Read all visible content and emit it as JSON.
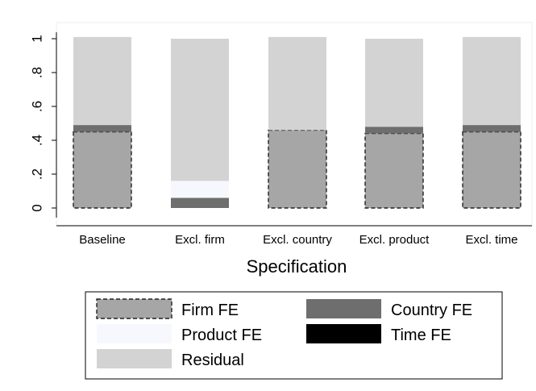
{
  "chart_data": {
    "type": "bar",
    "stacked": true,
    "title": "",
    "xlabel": "Specification",
    "ylabel": "",
    "ylim": [
      0,
      1
    ],
    "yticks": [
      0,
      0.2,
      0.4,
      0.6,
      0.8,
      1
    ],
    "ytick_labels": [
      "0",
      ".2",
      ".4",
      ".6",
      ".8",
      "1"
    ],
    "grid": false,
    "legend_position": "bottom",
    "categories": [
      "Baseline",
      "Excl. firm",
      "Excl. country",
      "Excl. product",
      "Excl. time"
    ],
    "series": [
      {
        "name": "Firm FE",
        "values": [
          0.45,
          0.0,
          0.46,
          0.44,
          0.45
        ],
        "color": "#a6a6a6",
        "dashed_border": true
      },
      {
        "name": "Country FE",
        "values": [
          0.04,
          0.06,
          0.0,
          0.04,
          0.04
        ],
        "color": "#6e6e6e"
      },
      {
        "name": "Product FE",
        "values": [
          0.0,
          0.1,
          0.0,
          0.0,
          0.0
        ],
        "color": "#f7f8fd"
      },
      {
        "name": "Time FE",
        "values": [
          0.0,
          0.0,
          0.0,
          0.0,
          0.0
        ],
        "color": "#000000"
      },
      {
        "name": "Residual",
        "values": [
          0.52,
          0.84,
          0.55,
          0.52,
          0.52
        ],
        "color": "#d3d3d3"
      }
    ],
    "legend_order": [
      "Firm FE",
      "Country FE",
      "Product FE",
      "Time FE",
      "Residual"
    ]
  }
}
